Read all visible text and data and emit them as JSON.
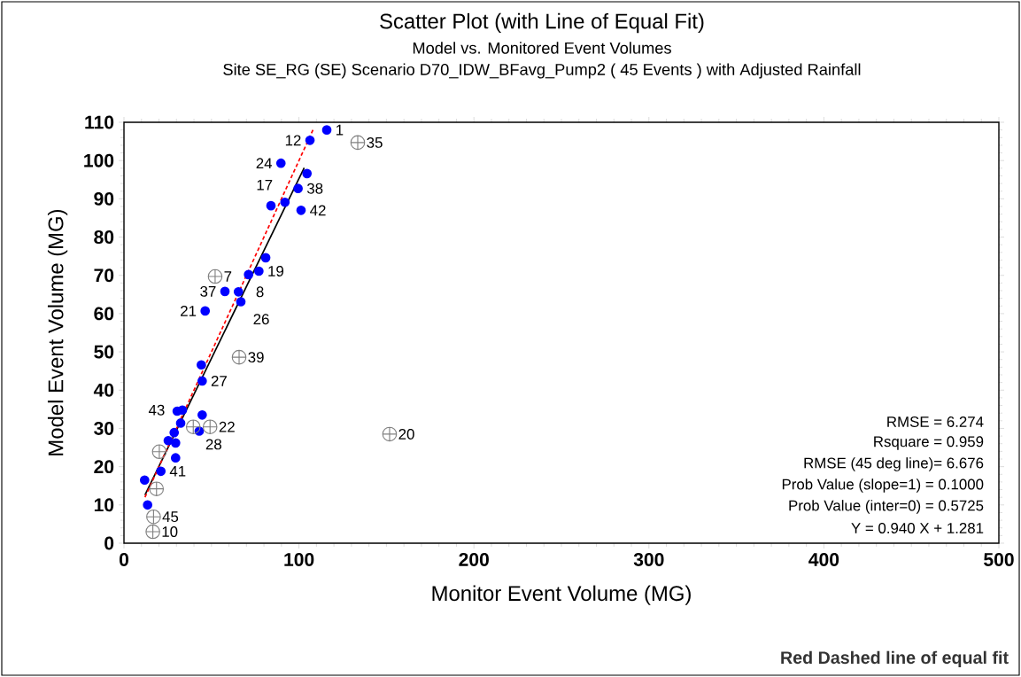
{
  "chart_data": {
    "type": "scatter",
    "title": "Scatter Plot (with Line of Equal Fit)",
    "subtitle": "Model vs. Monitored Event Volumes",
    "xlabel": "Monitor Event Volume (MG)",
    "ylabel": "Model Event Volume (MG)",
    "xlim": [
      0,
      500
    ],
    "ylim": [
      0,
      110
    ],
    "xticks": [
      0,
      100,
      200,
      300,
      400,
      500
    ],
    "yticks": [
      0,
      10,
      20,
      30,
      40,
      50,
      60,
      70,
      80,
      90,
      100,
      110
    ],
    "grid": false,
    "series": [
      {
        "color": "#0000ff",
        "marker": "circle",
        "x": [
          115.9,
          106.3,
          89.7,
          104.6,
          99.5,
          92.0,
          84.0,
          101.2,
          81.0,
          77.1,
          71.2,
          57.7,
          65.4,
          66.8,
          46.4,
          44.2,
          44.7,
          30.4,
          33.4,
          44.7,
          32.4,
          28.7,
          25.3,
          29.5,
          43.0,
          29.5,
          21.1,
          11.8,
          13.5
        ],
        "values": [
          108.0,
          105.3,
          99.3,
          96.6,
          92.7,
          89.1,
          88.2,
          87.0,
          74.6,
          71.1,
          70.2,
          65.8,
          65.7,
          63.1,
          60.7,
          46.6,
          42.4,
          34.5,
          34.8,
          33.5,
          31.4,
          28.9,
          26.8,
          26.2,
          29.3,
          22.3,
          18.8,
          16.5,
          10.0
        ]
      },
      {
        "color": "#808080",
        "marker": "cross",
        "x": [
          133.6,
          52.1,
          65.8,
          151.8,
          39.6,
          49.2,
          20.2,
          18.6,
          16.9,
          16.5
        ],
        "values": [
          104.7,
          69.7,
          48.6,
          28.5,
          30.4,
          30.4,
          23.9,
          14.2,
          6.9,
          3.0
        ]
      },
      {
        "type": "line",
        "color": "#000000",
        "line_style": "solid",
        "marker": "none",
        "x": [
          12,
          103
        ],
        "values": [
          12.6,
          98.1
        ]
      },
      {
        "type": "line",
        "color": "#ff0000",
        "line_style": "dashed",
        "marker": "none",
        "x": [
          12,
          108
        ],
        "values": [
          12,
          108
        ]
      }
    ],
    "annotations": [
      "Site SE_RG (SE) Scenario D70_IDW_BFavg_Pump2 ( 45 Events ) with Adjusted Rainfall",
      "RMSE = 6.274",
      "Rsquare = 0.959",
      "RMSE (45 deg line)= 6.676",
      "Prob Value (slope=1) = 0.1000",
      "Prob Value (inter=0) = 0.5725",
      "Y = 0.940 X +  1.281",
      "Red Dashed line of equal fit",
      {
        "text": "1",
        "x": 115.9,
        "y": 108.0
      },
      {
        "text": "12",
        "x": 106.3,
        "y": 105.3
      },
      {
        "text": "35",
        "x": 133.6,
        "y": 104.7
      },
      {
        "text": "24",
        "x": 89.7,
        "y": 99.3
      },
      {
        "text": "38",
        "x": 99.5,
        "y": 92.7
      },
      {
        "text": "17",
        "x": 92.0,
        "y": 89.1
      },
      {
        "text": "42",
        "x": 101.2,
        "y": 87.0
      },
      {
        "text": "19",
        "x": 77.1,
        "y": 71.1
      },
      {
        "text": "8",
        "x": 65.4,
        "y": 65.7
      },
      {
        "text": "7",
        "x": 52.1,
        "y": 69.7
      },
      {
        "text": "37",
        "x": 57.7,
        "y": 65.8
      },
      {
        "text": "26",
        "x": 66.8,
        "y": 63.1
      },
      {
        "text": "21",
        "x": 46.4,
        "y": 60.7
      },
      {
        "text": "27",
        "x": 44.7,
        "y": 42.4
      },
      {
        "text": "43",
        "x": 33.4,
        "y": 34.8
      },
      {
        "text": "39",
        "x": 65.8,
        "y": 48.6
      },
      {
        "text": "20",
        "x": 151.8,
        "y": 28.5
      },
      {
        "text": "28",
        "x": 39.6,
        "y": 30.4
      },
      {
        "text": "22",
        "x": 49.2,
        "y": 30.4
      },
      {
        "text": "41",
        "x": 21.1,
        "y": 18.8
      },
      {
        "text": "45",
        "x": 16.9,
        "y": 6.9
      },
      {
        "text": "10",
        "x": 16.5,
        "y": 3.0
      }
    ]
  }
}
